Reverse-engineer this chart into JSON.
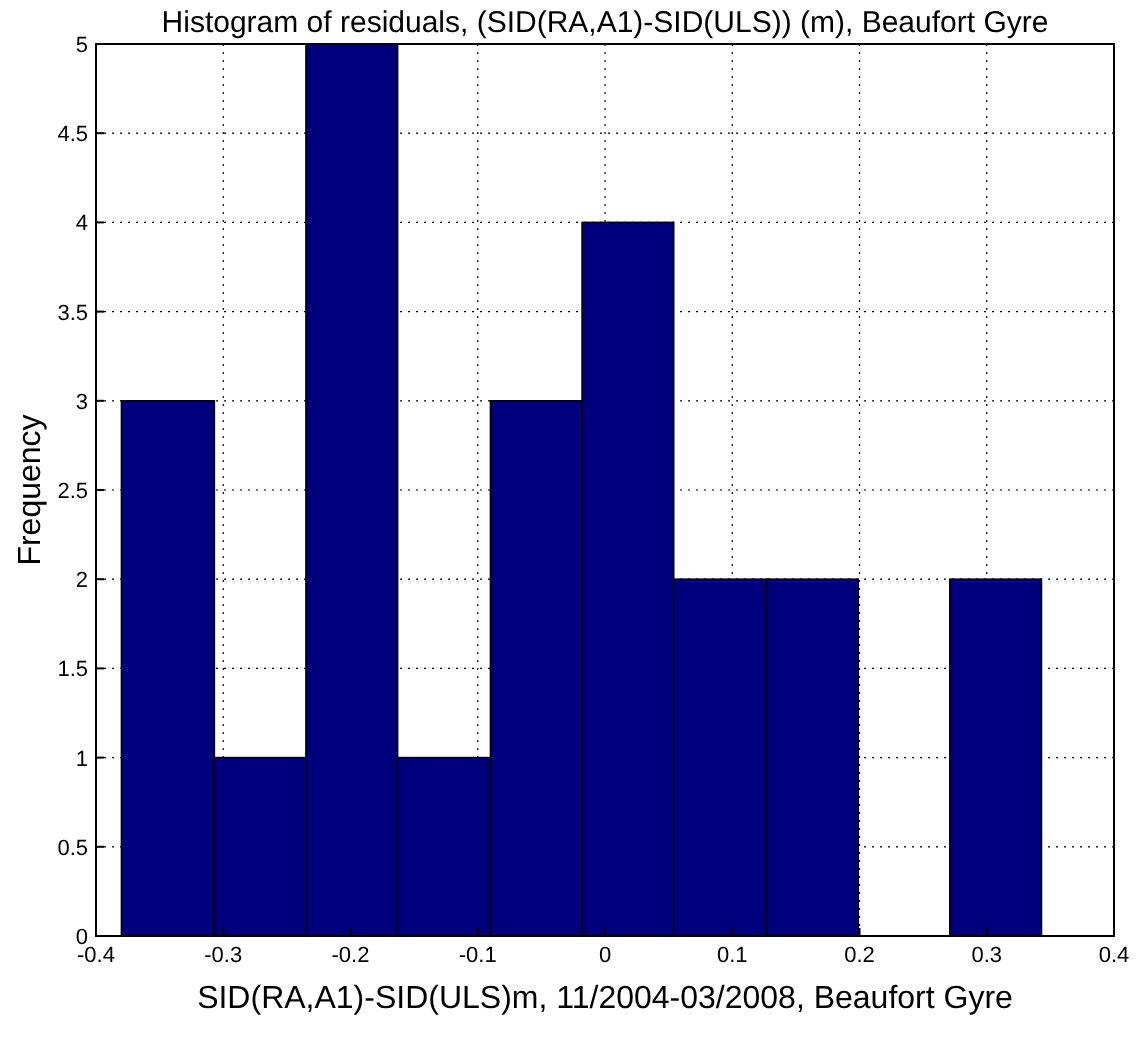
{
  "chart_data": {
    "type": "histogram",
    "title": "Histogram of residuals, (SID(RA,A1)-SID(ULS)) (m), Beaufort Gyre",
    "xlabel": "SID(RA,A1)-SID(ULS)m, 11/2004-03/2008, Beaufort Gyre",
    "ylabel": "Frequency",
    "bins": [
      -0.38,
      -0.307,
      -0.235,
      -0.163,
      -0.09,
      -0.018,
      0.054,
      0.127,
      0.199,
      0.271,
      0.343
    ],
    "values": [
      3,
      1,
      5,
      1,
      3,
      4,
      2,
      2,
      0,
      2
    ],
    "color": "#00007f",
    "xlim": [
      -0.4,
      0.4
    ],
    "xticks": [
      -0.4,
      -0.3,
      -0.2,
      -0.1,
      0,
      0.1,
      0.2,
      0.3,
      0.4
    ],
    "ylim": [
      0,
      5
    ],
    "yticks": [
      0,
      0.5,
      1,
      1.5,
      2,
      2.5,
      3,
      3.5,
      4,
      4.5,
      5
    ],
    "grid": true
  }
}
